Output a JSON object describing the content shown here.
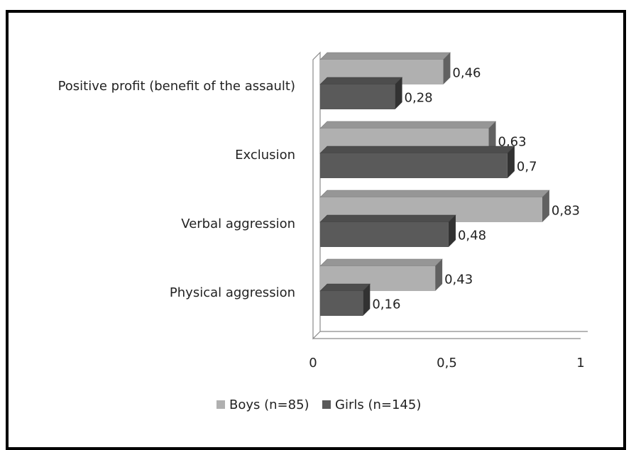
{
  "chart_data": {
    "type": "bar",
    "orientation": "horizontal",
    "style": "3d",
    "categories": [
      "Positive profit (benefit of the assault)",
      "Exclusion",
      "Verbal aggression",
      "Physical aggression"
    ],
    "series": [
      {
        "name": "Boys (n=85)",
        "values": [
          0.46,
          0.63,
          0.83,
          0.43
        ],
        "labels": [
          "0,46",
          "0,63",
          "0,83",
          "0,43"
        ],
        "color": "#b0b0b0"
      },
      {
        "name": "Girls (n=145)",
        "values": [
          0.28,
          0.7,
          0.48,
          0.16
        ],
        "labels": [
          "0,28",
          "0,7",
          "0,48",
          "0,16"
        ],
        "color": "#5a5a5a"
      }
    ],
    "xlim": [
      0,
      1
    ],
    "xticks": [
      {
        "value": 0,
        "label": "0"
      },
      {
        "value": 0.5,
        "label": "0,5"
      },
      {
        "value": 1,
        "label": "1"
      }
    ],
    "grid": false,
    "legend_position": "bottom",
    "title": "",
    "xlabel": "",
    "ylabel": ""
  }
}
